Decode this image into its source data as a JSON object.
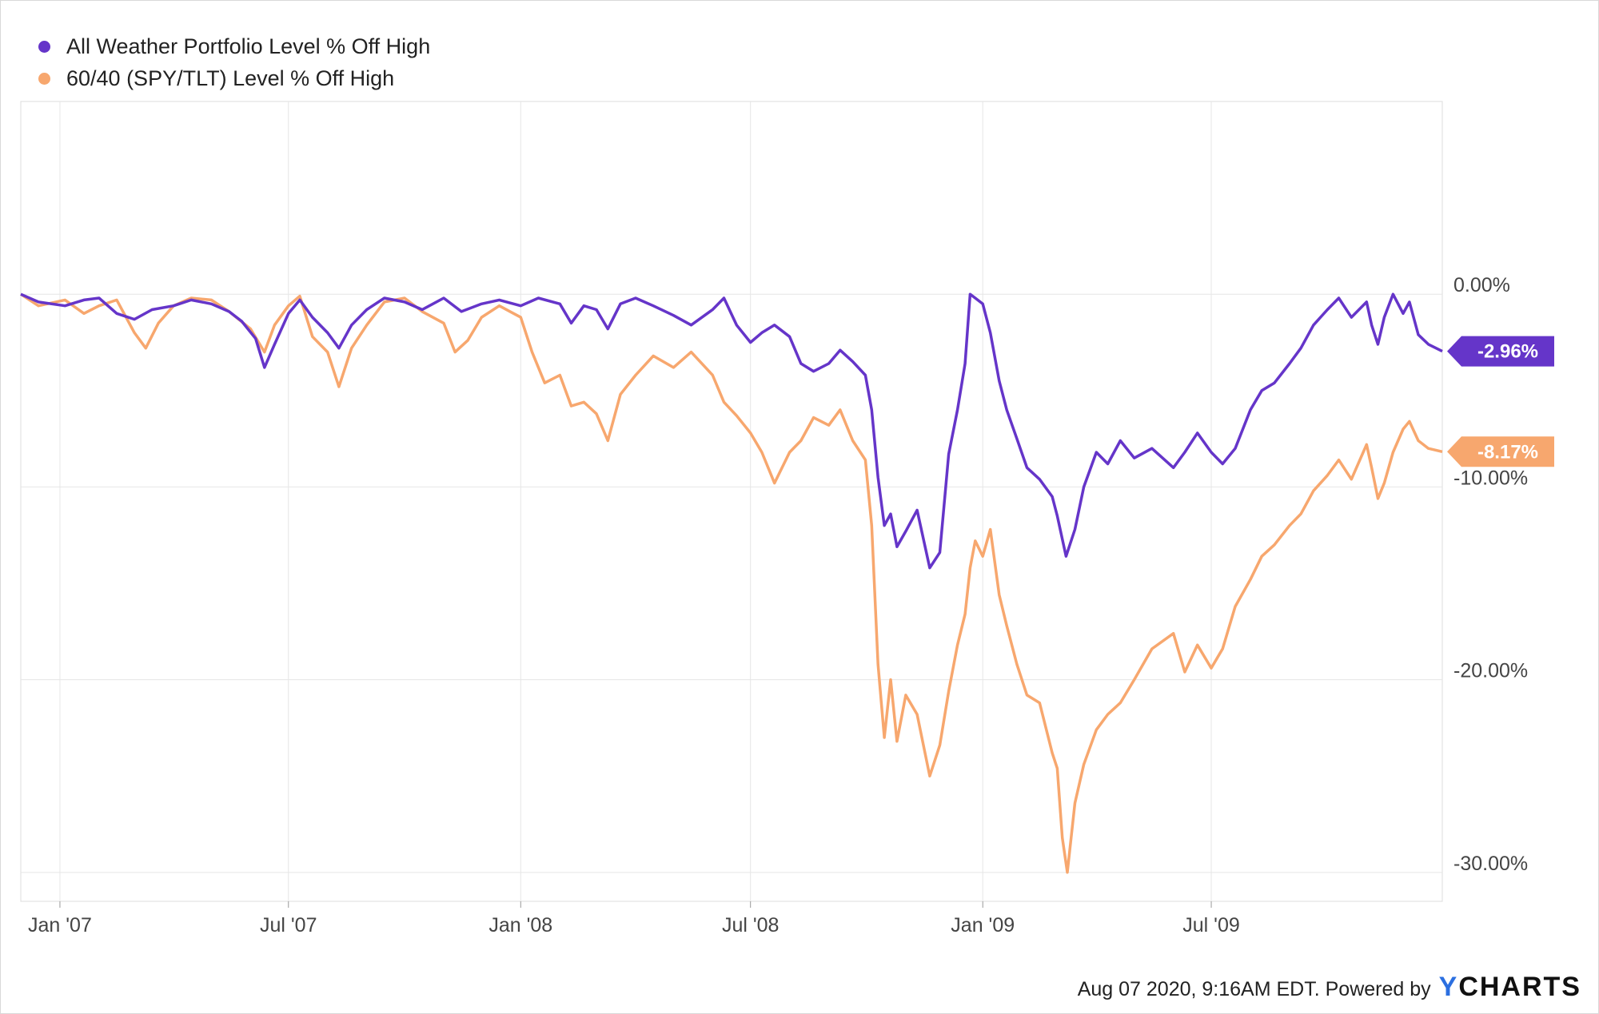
{
  "chart_data": {
    "type": "line",
    "legend_placement": "top-left",
    "grid": true,
    "y_ticks": [
      0,
      -10,
      -20,
      -30
    ],
    "y_tick_labels": [
      "0.00%",
      "-10.00%",
      "-20.00%",
      "-30.00%"
    ],
    "ylim": [
      -31.5,
      10
    ],
    "x_ticks": [
      "2007-01-01",
      "2007-07-01",
      "2008-01-01",
      "2008-07-01",
      "2009-01-01",
      "2009-07-01"
    ],
    "x_tick_labels": [
      "Jan '07",
      "Jul '07",
      "Jan '08",
      "Jul '08",
      "Jan '09",
      "Jul '09"
    ],
    "xlim": [
      "2006-12-01",
      "2009-12-31"
    ],
    "series": [
      {
        "name": "All Weather Portfolio Level % Off High",
        "color": "#6535c9",
        "end_label": "-2.96%",
        "points": [
          [
            "2006-12-01",
            0
          ],
          [
            "2006-12-15",
            -0.4
          ],
          [
            "2007-01-05",
            -0.6
          ],
          [
            "2007-01-20",
            -0.3
          ],
          [
            "2007-02-01",
            -0.2
          ],
          [
            "2007-02-15",
            -1.0
          ],
          [
            "2007-03-01",
            -1.3
          ],
          [
            "2007-03-15",
            -0.8
          ],
          [
            "2007-04-01",
            -0.6
          ],
          [
            "2007-04-15",
            -0.3
          ],
          [
            "2007-05-01",
            -0.5
          ],
          [
            "2007-05-15",
            -0.9
          ],
          [
            "2007-05-25",
            -1.4
          ],
          [
            "2007-06-05",
            -2.3
          ],
          [
            "2007-06-12",
            -3.8
          ],
          [
            "2007-06-20",
            -2.6
          ],
          [
            "2007-07-01",
            -1.0
          ],
          [
            "2007-07-10",
            -0.3
          ],
          [
            "2007-07-20",
            -1.2
          ],
          [
            "2007-08-01",
            -2.0
          ],
          [
            "2007-08-10",
            -2.8
          ],
          [
            "2007-08-20",
            -1.6
          ],
          [
            "2007-09-01",
            -0.8
          ],
          [
            "2007-09-15",
            -0.2
          ],
          [
            "2007-10-01",
            -0.4
          ],
          [
            "2007-10-15",
            -0.8
          ],
          [
            "2007-11-01",
            -0.2
          ],
          [
            "2007-11-15",
            -0.9
          ],
          [
            "2007-12-01",
            -0.5
          ],
          [
            "2007-12-15",
            -0.3
          ],
          [
            "2008-01-01",
            -0.6
          ],
          [
            "2008-01-15",
            -0.2
          ],
          [
            "2008-02-01",
            -0.5
          ],
          [
            "2008-02-10",
            -1.5
          ],
          [
            "2008-02-20",
            -0.6
          ],
          [
            "2008-03-01",
            -0.8
          ],
          [
            "2008-03-10",
            -1.8
          ],
          [
            "2008-03-20",
            -0.5
          ],
          [
            "2008-04-01",
            -0.2
          ],
          [
            "2008-04-15",
            -0.6
          ],
          [
            "2008-05-01",
            -1.1
          ],
          [
            "2008-05-15",
            -1.6
          ],
          [
            "2008-06-01",
            -0.8
          ],
          [
            "2008-06-10",
            -0.2
          ],
          [
            "2008-06-20",
            -1.6
          ],
          [
            "2008-07-01",
            -2.5
          ],
          [
            "2008-07-10",
            -2.0
          ],
          [
            "2008-07-20",
            -1.6
          ],
          [
            "2008-08-01",
            -2.2
          ],
          [
            "2008-08-10",
            -3.6
          ],
          [
            "2008-08-20",
            -4.0
          ],
          [
            "2008-09-01",
            -3.6
          ],
          [
            "2008-09-10",
            -2.9
          ],
          [
            "2008-09-20",
            -3.5
          ],
          [
            "2008-09-30",
            -4.2
          ],
          [
            "2008-10-05",
            -6.0
          ],
          [
            "2008-10-10",
            -9.5
          ],
          [
            "2008-10-15",
            -12.0
          ],
          [
            "2008-10-20",
            -11.4
          ],
          [
            "2008-10-25",
            -13.1
          ],
          [
            "2008-11-01",
            -12.3
          ],
          [
            "2008-11-10",
            -11.2
          ],
          [
            "2008-11-20",
            -14.2
          ],
          [
            "2008-11-28",
            -13.4
          ],
          [
            "2008-12-05",
            -8.3
          ],
          [
            "2008-12-12",
            -6.0
          ],
          [
            "2008-12-18",
            -3.6
          ],
          [
            "2008-12-22",
            0
          ],
          [
            "2008-12-26",
            -0.2
          ],
          [
            "2009-01-01",
            -0.5
          ],
          [
            "2009-01-07",
            -2.0
          ],
          [
            "2009-01-14",
            -4.5
          ],
          [
            "2009-01-20",
            -6.0
          ],
          [
            "2009-01-28",
            -7.5
          ],
          [
            "2009-02-05",
            -9.0
          ],
          [
            "2009-02-15",
            -9.6
          ],
          [
            "2009-02-25",
            -10.5
          ],
          [
            "2009-03-01",
            -11.5
          ],
          [
            "2009-03-08",
            -13.6
          ],
          [
            "2009-03-15",
            -12.2
          ],
          [
            "2009-03-22",
            -10.0
          ],
          [
            "2009-04-01",
            -8.2
          ],
          [
            "2009-04-10",
            -8.8
          ],
          [
            "2009-04-20",
            -7.6
          ],
          [
            "2009-05-01",
            -8.5
          ],
          [
            "2009-05-15",
            -8.0
          ],
          [
            "2009-06-01",
            -9.0
          ],
          [
            "2009-06-10",
            -8.2
          ],
          [
            "2009-06-20",
            -7.2
          ],
          [
            "2009-07-01",
            -8.2
          ],
          [
            "2009-07-10",
            -8.8
          ],
          [
            "2009-07-20",
            -8.0
          ],
          [
            "2009-08-01",
            -6.0
          ],
          [
            "2009-08-10",
            -5.0
          ],
          [
            "2009-08-20",
            -4.6
          ],
          [
            "2009-09-01",
            -3.6
          ],
          [
            "2009-09-10",
            -2.8
          ],
          [
            "2009-09-20",
            -1.6
          ],
          [
            "2009-10-01",
            -0.8
          ],
          [
            "2009-10-10",
            -0.2
          ],
          [
            "2009-10-20",
            -1.2
          ],
          [
            "2009-11-01",
            -0.4
          ],
          [
            "2009-11-05",
            -1.6
          ],
          [
            "2009-11-10",
            -2.6
          ],
          [
            "2009-11-15",
            -1.2
          ],
          [
            "2009-11-22",
            0
          ],
          [
            "2009-11-30",
            -1.0
          ],
          [
            "2009-12-05",
            -0.4
          ],
          [
            "2009-12-12",
            -2.1
          ],
          [
            "2009-12-20",
            -2.6
          ],
          [
            "2009-12-31",
            -2.96
          ]
        ]
      },
      {
        "name": "60/40 (SPY/TLT) Level % Off High",
        "color": "#f7a76e",
        "end_label": "-8.17%",
        "points": [
          [
            "2006-12-01",
            0
          ],
          [
            "2006-12-15",
            -0.6
          ],
          [
            "2007-01-05",
            -0.3
          ],
          [
            "2007-01-20",
            -1.0
          ],
          [
            "2007-02-01",
            -0.6
          ],
          [
            "2007-02-15",
            -0.3
          ],
          [
            "2007-03-01",
            -2.0
          ],
          [
            "2007-03-10",
            -2.8
          ],
          [
            "2007-03-20",
            -1.5
          ],
          [
            "2007-04-01",
            -0.6
          ],
          [
            "2007-04-15",
            -0.2
          ],
          [
            "2007-05-01",
            -0.3
          ],
          [
            "2007-05-15",
            -0.9
          ],
          [
            "2007-06-01",
            -1.8
          ],
          [
            "2007-06-12",
            -3.0
          ],
          [
            "2007-06-20",
            -1.6
          ],
          [
            "2007-07-01",
            -0.6
          ],
          [
            "2007-07-10",
            -0.1
          ],
          [
            "2007-07-20",
            -2.2
          ],
          [
            "2007-08-01",
            -3.0
          ],
          [
            "2007-08-10",
            -4.8
          ],
          [
            "2007-08-20",
            -2.8
          ],
          [
            "2007-09-01",
            -1.6
          ],
          [
            "2007-09-15",
            -0.4
          ],
          [
            "2007-10-01",
            -0.2
          ],
          [
            "2007-10-15",
            -0.9
          ],
          [
            "2007-11-01",
            -1.5
          ],
          [
            "2007-11-10",
            -3.0
          ],
          [
            "2007-11-20",
            -2.4
          ],
          [
            "2007-12-01",
            -1.2
          ],
          [
            "2007-12-15",
            -0.6
          ],
          [
            "2008-01-01",
            -1.2
          ],
          [
            "2008-01-10",
            -3.0
          ],
          [
            "2008-01-20",
            -4.6
          ],
          [
            "2008-02-01",
            -4.2
          ],
          [
            "2008-02-10",
            -5.8
          ],
          [
            "2008-02-20",
            -5.6
          ],
          [
            "2008-03-01",
            -6.2
          ],
          [
            "2008-03-10",
            -7.6
          ],
          [
            "2008-03-20",
            -5.2
          ],
          [
            "2008-04-01",
            -4.2
          ],
          [
            "2008-04-15",
            -3.2
          ],
          [
            "2008-05-01",
            -3.8
          ],
          [
            "2008-05-15",
            -3.0
          ],
          [
            "2008-06-01",
            -4.2
          ],
          [
            "2008-06-10",
            -5.6
          ],
          [
            "2008-06-20",
            -6.3
          ],
          [
            "2008-07-01",
            -7.2
          ],
          [
            "2008-07-10",
            -8.2
          ],
          [
            "2008-07-20",
            -9.8
          ],
          [
            "2008-08-01",
            -8.2
          ],
          [
            "2008-08-10",
            -7.6
          ],
          [
            "2008-08-20",
            -6.4
          ],
          [
            "2008-09-01",
            -6.8
          ],
          [
            "2008-09-10",
            -6.0
          ],
          [
            "2008-09-20",
            -7.6
          ],
          [
            "2008-09-30",
            -8.6
          ],
          [
            "2008-10-05",
            -12.0
          ],
          [
            "2008-10-10",
            -19.2
          ],
          [
            "2008-10-15",
            -23.0
          ],
          [
            "2008-10-20",
            -20.0
          ],
          [
            "2008-10-25",
            -23.2
          ],
          [
            "2008-11-01",
            -20.8
          ],
          [
            "2008-11-10",
            -21.8
          ],
          [
            "2008-11-20",
            -25.0
          ],
          [
            "2008-11-28",
            -23.4
          ],
          [
            "2008-12-05",
            -20.6
          ],
          [
            "2008-12-12",
            -18.2
          ],
          [
            "2008-12-18",
            -16.6
          ],
          [
            "2008-12-22",
            -14.2
          ],
          [
            "2008-12-26",
            -12.8
          ],
          [
            "2009-01-01",
            -13.6
          ],
          [
            "2009-01-07",
            -12.2
          ],
          [
            "2009-01-14",
            -15.6
          ],
          [
            "2009-01-20",
            -17.2
          ],
          [
            "2009-01-28",
            -19.2
          ],
          [
            "2009-02-05",
            -20.8
          ],
          [
            "2009-02-15",
            -21.2
          ],
          [
            "2009-02-25",
            -23.8
          ],
          [
            "2009-03-01",
            -24.6
          ],
          [
            "2009-03-05",
            -28.2
          ],
          [
            "2009-03-09",
            -30.0
          ],
          [
            "2009-03-15",
            -26.4
          ],
          [
            "2009-03-22",
            -24.4
          ],
          [
            "2009-04-01",
            -22.6
          ],
          [
            "2009-04-10",
            -21.8
          ],
          [
            "2009-04-20",
            -21.2
          ],
          [
            "2009-05-01",
            -20.0
          ],
          [
            "2009-05-15",
            -18.4
          ],
          [
            "2009-06-01",
            -17.6
          ],
          [
            "2009-06-10",
            -19.6
          ],
          [
            "2009-06-20",
            -18.2
          ],
          [
            "2009-07-01",
            -19.4
          ],
          [
            "2009-07-10",
            -18.4
          ],
          [
            "2009-07-20",
            -16.2
          ],
          [
            "2009-08-01",
            -14.8
          ],
          [
            "2009-08-10",
            -13.6
          ],
          [
            "2009-08-20",
            -13.0
          ],
          [
            "2009-09-01",
            -12.0
          ],
          [
            "2009-09-10",
            -11.4
          ],
          [
            "2009-09-20",
            -10.2
          ],
          [
            "2009-10-01",
            -9.4
          ],
          [
            "2009-10-10",
            -8.6
          ],
          [
            "2009-10-20",
            -9.6
          ],
          [
            "2009-11-01",
            -7.8
          ],
          [
            "2009-11-05",
            -9.0
          ],
          [
            "2009-11-10",
            -10.6
          ],
          [
            "2009-11-15",
            -9.8
          ],
          [
            "2009-11-22",
            -8.2
          ],
          [
            "2009-11-30",
            -7.0
          ],
          [
            "2009-12-05",
            -6.6
          ],
          [
            "2009-12-12",
            -7.6
          ],
          [
            "2009-12-20",
            -8.0
          ],
          [
            "2009-12-31",
            -8.17
          ]
        ]
      }
    ]
  },
  "footer": {
    "timestamp": "Aug 07 2020, 9:16AM EDT. Powered by",
    "brand_y": "Y",
    "brand_rest": "CHARTS"
  }
}
